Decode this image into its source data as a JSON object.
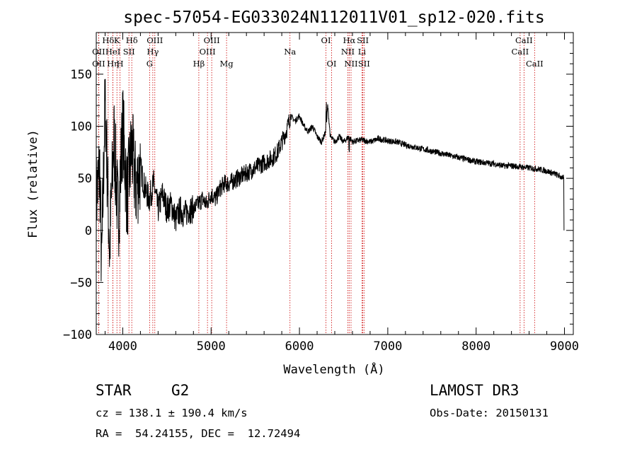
{
  "title": "spec-57054-EG033024N112011V01_sp12-020.fits",
  "info": {
    "object_class": "STAR",
    "subclass": "G2",
    "survey": "LAMOST DR3",
    "cz": "cz = 138.1 ± 190.4 km/s",
    "obs_date": "Obs-Date: 20150131",
    "coords": "RA =  54.24155, DEC =  12.72494"
  },
  "chart_data": {
    "type": "line",
    "title": "spec-57054-EG033024N112011V01_sp12-020.fits",
    "xlabel": "Wavelength (Å)",
    "ylabel": "Flux (relative)",
    "xlim": [
      3700,
      9100
    ],
    "ylim": [
      -100,
      190
    ],
    "xticks": [
      4000,
      5000,
      6000,
      7000,
      8000,
      9000
    ],
    "yticks": [
      -100,
      -50,
      0,
      50,
      100,
      150
    ],
    "ytick_labels": [
      "−100",
      "−50",
      "0",
      "50",
      "100",
      "150"
    ],
    "series": [
      {
        "name": "flux",
        "x": [
          3700,
          3740,
          3760,
          3800,
          3850,
          3900,
          3950,
          4000,
          4050,
          4100,
          4150,
          4200,
          4250,
          4300,
          4350,
          4400,
          4450,
          4500,
          4550,
          4600,
          4650,
          4700,
          4750,
          4800,
          4850,
          4900,
          4950,
          5000,
          5050,
          5100,
          5150,
          5200,
          5300,
          5400,
          5500,
          5600,
          5700,
          5750,
          5800,
          5850,
          5900,
          5950,
          6000,
          6050,
          6100,
          6150,
          6200,
          6250,
          6300,
          6320,
          6350,
          6400,
          6450,
          6500,
          6560,
          6600,
          6700,
          6800,
          6900,
          7000,
          7100,
          7200,
          7300,
          7400,
          7500,
          7600,
          7700,
          7800,
          7900,
          8000,
          8100,
          8200,
          8300,
          8400,
          8500,
          8600,
          8700,
          8800,
          8900,
          8990,
          9000
        ],
        "y": [
          30,
          60,
          -40,
          130,
          -20,
          90,
          10,
          100,
          30,
          80,
          40,
          60,
          40,
          30,
          45,
          20,
          35,
          20,
          25,
          10,
          20,
          15,
          20,
          20,
          25,
          30,
          25,
          35,
          30,
          40,
          45,
          45,
          50,
          55,
          60,
          65,
          70,
          75,
          85,
          95,
          110,
          105,
          110,
          100,
          95,
          100,
          90,
          85,
          95,
          120,
          90,
          85,
          90,
          85,
          90,
          85,
          87,
          85,
          88,
          86,
          85,
          82,
          80,
          78,
          76,
          74,
          72,
          70,
          68,
          66,
          65,
          64,
          62,
          62,
          61,
          60,
          59,
          57,
          54,
          50,
          0
        ]
      }
    ],
    "spectral_lines": [
      {
        "label": "Hδ",
        "wavelength": 3835,
        "row": 1
      },
      {
        "label": "OII",
        "wavelength": 3727,
        "row": 2
      },
      {
        "label": "OII",
        "wavelength": 3727,
        "row": 3
      },
      {
        "label": "HeI",
        "wavelength": 3889,
        "row": 2
      },
      {
        "label": "Hη",
        "wavelength": 3889,
        "row": 3
      },
      {
        "label": "K",
        "wavelength": 3934,
        "row": 1
      },
      {
        "label": "H",
        "wavelength": 3969,
        "row": 3
      },
      {
        "label": "SII",
        "wavelength": 4070,
        "row": 2
      },
      {
        "label": "Hδ",
        "wavelength": 4102,
        "row": 1
      },
      {
        "label": "OIII",
        "wavelength": 4363,
        "row": 1
      },
      {
        "label": "Hγ",
        "wavelength": 4340,
        "row": 2
      },
      {
        "label": "G",
        "wavelength": 4304,
        "row": 3
      },
      {
        "label": "Hβ",
        "wavelength": 4861,
        "row": 3
      },
      {
        "label": "OIII",
        "wavelength": 5007,
        "row": 1
      },
      {
        "label": "OIII",
        "wavelength": 4959,
        "row": 2
      },
      {
        "label": "Mg",
        "wavelength": 5175,
        "row": 3
      },
      {
        "label": "Na",
        "wavelength": 5893,
        "row": 2
      },
      {
        "label": "OI",
        "wavelength": 6300,
        "row": 1
      },
      {
        "label": "OI",
        "wavelength": 6364,
        "row": 3
      },
      {
        "label": "Hα",
        "wavelength": 6563,
        "row": 1
      },
      {
        "label": "NII",
        "wavelength": 6548,
        "row": 2
      },
      {
        "label": "NII",
        "wavelength": 6584,
        "row": 3
      },
      {
        "label": "SII",
        "wavelength": 6717,
        "row": 1
      },
      {
        "label": "Li",
        "wavelength": 6708,
        "row": 2
      },
      {
        "label": "SII",
        "wavelength": 6731,
        "row": 3
      },
      {
        "label": "CaII",
        "wavelength": 8542,
        "row": 1
      },
      {
        "label": "CaII",
        "wavelength": 8498,
        "row": 2
      },
      {
        "label": "CaII",
        "wavelength": 8662,
        "row": 3
      }
    ]
  }
}
